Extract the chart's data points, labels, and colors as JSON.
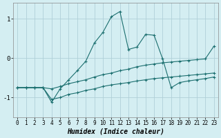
{
  "xlabel": "Humidex (Indice chaleur)",
  "background_color": "#d4eef2",
  "grid_color": "#b0d0d8",
  "line_color": "#1a6e6e",
  "xlim": [
    -0.5,
    23.5
  ],
  "ylim": [
    -1.5,
    1.4
  ],
  "yticks": [
    -1,
    0,
    1
  ],
  "xticks": [
    0,
    1,
    2,
    3,
    4,
    5,
    6,
    7,
    8,
    9,
    10,
    11,
    12,
    13,
    14,
    15,
    16,
    17,
    18,
    19,
    20,
    21,
    22,
    23
  ],
  "series1_x": [
    0,
    1,
    2,
    3,
    4,
    5,
    6,
    7,
    8,
    9,
    10,
    11,
    12,
    13,
    14,
    15,
    16,
    17,
    18,
    19,
    20,
    21,
    22,
    23
  ],
  "series1_y": [
    -0.75,
    -0.75,
    -0.75,
    -0.75,
    -1.05,
    -1.0,
    -0.92,
    -0.88,
    -0.82,
    -0.78,
    -0.72,
    -0.68,
    -0.65,
    -0.62,
    -0.58,
    -0.55,
    -0.52,
    -0.5,
    -0.48,
    -0.46,
    -0.44,
    -0.42,
    -0.4,
    -0.38
  ],
  "series2_x": [
    0,
    1,
    2,
    3,
    4,
    5,
    6,
    7,
    8,
    9,
    10,
    11,
    12,
    13,
    14,
    15,
    16,
    17,
    18,
    19,
    20,
    21,
    22,
    23
  ],
  "series2_y": [
    -0.75,
    -0.75,
    -0.75,
    -0.75,
    -1.12,
    -0.78,
    -0.55,
    -0.32,
    -0.08,
    0.38,
    0.65,
    1.05,
    1.18,
    0.22,
    0.28,
    0.6,
    0.58,
    -0.02,
    -0.75,
    -0.62,
    -0.58,
    -0.55,
    -0.52,
    -0.48
  ],
  "series3_x": [
    0,
    1,
    2,
    3,
    4,
    5,
    6,
    7,
    8,
    9,
    10,
    11,
    12,
    13,
    14,
    15,
    16,
    17,
    18,
    19,
    20,
    21,
    22,
    23
  ],
  "series3_y": [
    -0.75,
    -0.75,
    -0.75,
    -0.75,
    -0.78,
    -0.72,
    -0.65,
    -0.6,
    -0.55,
    -0.48,
    -0.42,
    -0.38,
    -0.32,
    -0.28,
    -0.22,
    -0.18,
    -0.15,
    -0.12,
    -0.1,
    -0.08,
    -0.06,
    -0.04,
    -0.02,
    0.3
  ]
}
